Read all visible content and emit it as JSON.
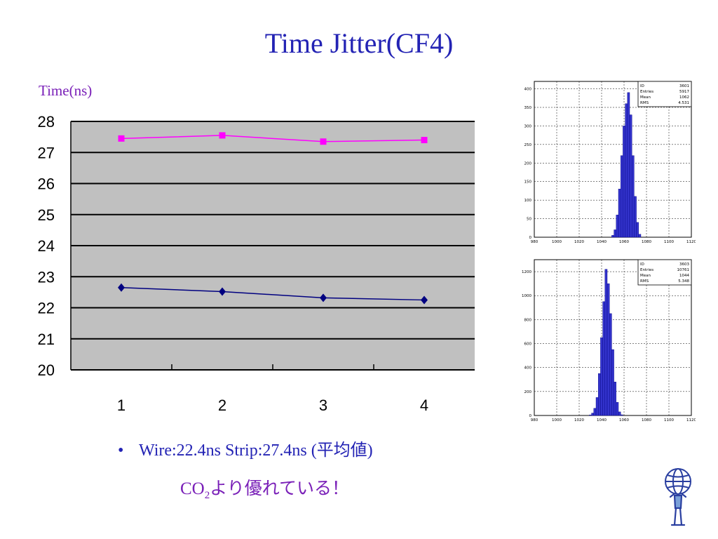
{
  "slide": {
    "title": "Time Jitter(CF4)",
    "y_unit_label": "Time(ns)",
    "bullet_symbol": "•",
    "bullet_text": "Wire:22.4ns Strip:27.4ns (平均値)",
    "conclusion_prefix": "CO",
    "conclusion_subscript": "2",
    "conclusion_suffix": "より優れている！"
  },
  "colors": {
    "title": "#2323b4",
    "accent_purple": "#7a20b8",
    "plot_bg": "#c0c0c0",
    "strip_series": "#ff00ff",
    "wire_series": "#000080",
    "hist_fill": "#3333cc"
  },
  "chart_data": [
    {
      "type": "line",
      "title": "",
      "xlabel": "",
      "ylabel": "Time(ns)",
      "categories": [
        "1",
        "2",
        "3",
        "4"
      ],
      "ylim": [
        20,
        28
      ],
      "yticks": [
        "20",
        "21",
        "22",
        "23",
        "24",
        "25",
        "26",
        "27",
        "28"
      ],
      "grid": true,
      "series": [
        {
          "values": [
            27.45,
            27.55,
            27.35,
            27.4
          ],
          "marker": "square",
          "color": "#ff00ff"
        },
        {
          "values": [
            22.65,
            22.52,
            22.32,
            22.25
          ],
          "marker": "diamond",
          "color": "#000080"
        }
      ]
    },
    {
      "type": "bar",
      "title": "",
      "stats": [
        {
          "label": "ID",
          "value": "3601"
        },
        {
          "label": "Entries",
          "value": "5917"
        },
        {
          "label": "Mean",
          "value": "1062"
        },
        {
          "label": "RMS",
          "value": "4.531"
        }
      ],
      "xticks": [
        "980",
        "1000",
        "1020",
        "1040",
        "1060",
        "1080",
        "1100",
        "1120"
      ],
      "xlim": [
        980,
        1120
      ],
      "yticks": [
        "0",
        "50",
        "100",
        "150",
        "200",
        "250",
        "300",
        "350",
        "400"
      ],
      "ylim": [
        0,
        420
      ],
      "x": [
        1050,
        1052,
        1054,
        1056,
        1058,
        1060,
        1062,
        1064,
        1066,
        1068,
        1070,
        1072,
        1074
      ],
      "values": [
        5,
        20,
        60,
        130,
        220,
        300,
        360,
        390,
        330,
        220,
        110,
        40,
        8
      ]
    },
    {
      "type": "bar",
      "title": "",
      "stats": [
        {
          "label": "ID",
          "value": "3603"
        },
        {
          "label": "Entries",
          "value": "10761"
        },
        {
          "label": "Mean",
          "value": "1044"
        },
        {
          "label": "RMS",
          "value": "5.348"
        }
      ],
      "xticks": [
        "980",
        "1000",
        "1020",
        "1040",
        "1060",
        "1080",
        "1100",
        "1120"
      ],
      "xlim": [
        980,
        1120
      ],
      "yticks": [
        "0",
        "200",
        "400",
        "600",
        "800",
        "1000",
        "1200"
      ],
      "ylim": [
        0,
        1300
      ],
      "x": [
        1030,
        1032,
        1034,
        1036,
        1038,
        1040,
        1042,
        1044,
        1046,
        1048,
        1050,
        1052,
        1054,
        1056,
        1058
      ],
      "values": [
        5,
        20,
        60,
        150,
        350,
        650,
        950,
        1220,
        1100,
        850,
        550,
        280,
        110,
        30,
        6
      ]
    }
  ]
}
